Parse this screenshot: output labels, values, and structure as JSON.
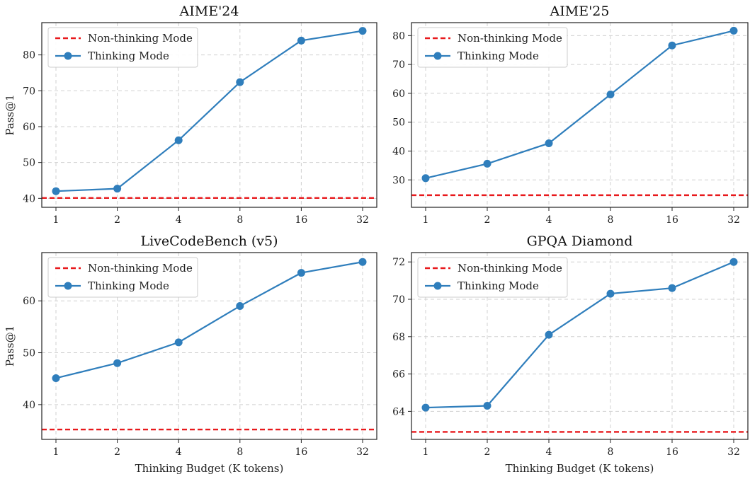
{
  "chart_data": [
    {
      "type": "line",
      "title": "AIME'24",
      "xlabel": "",
      "ylabel": "Pass@1",
      "x": [
        1,
        2,
        4,
        8,
        16,
        32
      ],
      "xticks": [
        "1",
        "2",
        "4",
        "8",
        "16",
        "32"
      ],
      "yticks": [
        40,
        50,
        60,
        70,
        80
      ],
      "ylim": [
        37.5,
        89
      ],
      "grid": true,
      "legend_position": "top-left",
      "series": [
        {
          "name": "Non-thinking Mode",
          "style": "dashed",
          "color": "#e8191c",
          "value": 40.1
        },
        {
          "name": "Thinking Mode",
          "style": "line-marker",
          "color": "#2f7ebc",
          "values": [
            42.0,
            42.7,
            56.2,
            72.4,
            84.0,
            86.7
          ]
        }
      ]
    },
    {
      "type": "line",
      "title": "AIME'25",
      "xlabel": "",
      "ylabel": "",
      "x": [
        1,
        2,
        4,
        8,
        16,
        32
      ],
      "xticks": [
        "1",
        "2",
        "4",
        "8",
        "16",
        "32"
      ],
      "yticks": [
        30,
        40,
        50,
        60,
        70,
        80
      ],
      "ylim": [
        20.5,
        84.5
      ],
      "grid": true,
      "legend_position": "top-left",
      "series": [
        {
          "name": "Non-thinking Mode",
          "style": "dashed",
          "color": "#e8191c",
          "value": 24.7
        },
        {
          "name": "Thinking Mode",
          "style": "line-marker",
          "color": "#2f7ebc",
          "values": [
            30.6,
            35.6,
            42.7,
            59.6,
            76.6,
            81.7
          ]
        }
      ]
    },
    {
      "type": "line",
      "title": "LiveCodeBench (v5)",
      "xlabel": "Thinking Budget (K tokens)",
      "ylabel": "Pass@1",
      "x": [
        1,
        2,
        4,
        8,
        16,
        32
      ],
      "xticks": [
        "1",
        "2",
        "4",
        "8",
        "16",
        "32"
      ],
      "yticks": [
        40,
        50,
        60
      ],
      "ylim": [
        33.3,
        69.3
      ],
      "grid": true,
      "legend_position": "top-left",
      "series": [
        {
          "name": "Non-thinking Mode",
          "style": "dashed",
          "color": "#e8191c",
          "value": 35.2
        },
        {
          "name": "Thinking Mode",
          "style": "line-marker",
          "color": "#2f7ebc",
          "values": [
            45.1,
            48.0,
            52.0,
            59.0,
            65.4,
            67.5
          ]
        }
      ]
    },
    {
      "type": "line",
      "title": "GPQA Diamond",
      "xlabel": "Thinking Budget (K tokens)",
      "ylabel": "",
      "x": [
        1,
        2,
        4,
        8,
        16,
        32
      ],
      "xticks": [
        "1",
        "2",
        "4",
        "8",
        "16",
        "32"
      ],
      "yticks": [
        64,
        66,
        68,
        70,
        72
      ],
      "ylim": [
        62.5,
        72.5
      ],
      "grid": true,
      "legend_position": "top-left",
      "series": [
        {
          "name": "Non-thinking Mode",
          "style": "dashed",
          "color": "#e8191c",
          "value": 62.9
        },
        {
          "name": "Thinking Mode",
          "style": "line-marker",
          "color": "#2f7ebc",
          "values": [
            64.2,
            64.3,
            68.1,
            70.3,
            70.6,
            72.0
          ]
        }
      ]
    }
  ]
}
